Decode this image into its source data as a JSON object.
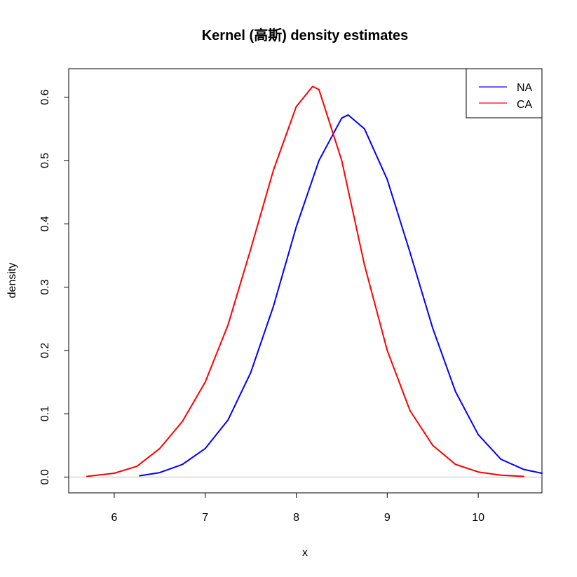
{
  "chart_data": {
    "type": "line",
    "title": "Kernel (高斯) density estimates",
    "xlabel": "x",
    "ylabel": "density",
    "xlim": [
      5.5,
      10.7
    ],
    "ylim": [
      -0.025,
      0.645
    ],
    "xticks": [
      6,
      7,
      8,
      9,
      10
    ],
    "yticks": [
      0.0,
      0.1,
      0.2,
      0.3,
      0.4,
      0.5,
      0.6
    ],
    "ytick_labels": [
      "0.0",
      "0.1",
      "0.2",
      "0.3",
      "0.4",
      "0.5",
      "0.6"
    ],
    "baseline": {
      "y": 0,
      "color": "#bebebe"
    },
    "legend_position": "top-right",
    "series": [
      {
        "name": "NA",
        "color": "#0000ff",
        "x": [
          6.28,
          6.5,
          6.75,
          7.0,
          7.25,
          7.5,
          7.75,
          8.0,
          8.25,
          8.5,
          8.57,
          8.75,
          9.0,
          9.25,
          9.5,
          9.75,
          10.0,
          10.25,
          10.5,
          10.7
        ],
        "y": [
          0.002,
          0.007,
          0.02,
          0.045,
          0.09,
          0.165,
          0.27,
          0.395,
          0.5,
          0.567,
          0.572,
          0.55,
          0.47,
          0.355,
          0.235,
          0.135,
          0.067,
          0.028,
          0.012,
          0.006
        ]
      },
      {
        "name": "CA",
        "color": "#ff0000",
        "x": [
          5.7,
          6.0,
          6.25,
          6.5,
          6.75,
          7.0,
          7.25,
          7.5,
          7.75,
          8.0,
          8.18,
          8.25,
          8.5,
          8.75,
          9.0,
          9.25,
          9.5,
          9.75,
          10.0,
          10.25,
          10.5
        ],
        "y": [
          0.001,
          0.006,
          0.017,
          0.045,
          0.088,
          0.15,
          0.24,
          0.36,
          0.485,
          0.585,
          0.617,
          0.612,
          0.5,
          0.335,
          0.2,
          0.105,
          0.05,
          0.02,
          0.008,
          0.003,
          0.001
        ]
      }
    ]
  }
}
